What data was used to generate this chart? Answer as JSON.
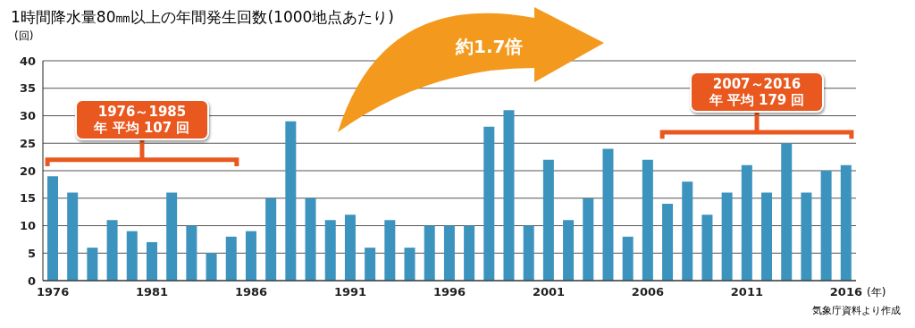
{
  "chart_data": {
    "type": "bar",
    "title": "1時間降水量80㎜以上の年間発生回数(1000地点あたり)",
    "ylabel": "(回)",
    "xlabel": "(年)",
    "categories": [
      "1976",
      null,
      null,
      null,
      null,
      "1981",
      null,
      null,
      null,
      null,
      "1986",
      null,
      null,
      null,
      null,
      "1991",
      null,
      null,
      null,
      null,
      "1996",
      null,
      null,
      null,
      null,
      "2001",
      null,
      null,
      null,
      null,
      "2006",
      null,
      null,
      null,
      null,
      "2011",
      null,
      null,
      null,
      null,
      "2016"
    ],
    "values": [
      19,
      16,
      6,
      11,
      9,
      7,
      16,
      10,
      5,
      8,
      9,
      15,
      29,
      15,
      11,
      12,
      6,
      11,
      6,
      10,
      10,
      10,
      28,
      31,
      10,
      22,
      11,
      15,
      24,
      8,
      22,
      14,
      18,
      12,
      16,
      21,
      16,
      25,
      16,
      20,
      21
    ],
    "color": "#3b93be",
    "ylim": [
      0,
      40
    ],
    "yticks": [
      0,
      5,
      10,
      15,
      20,
      25,
      30,
      35,
      40
    ],
    "grid": "y",
    "annotations": [
      "1976～1985 年 平均 107 回",
      "2007～2016 年 平均 179 回",
      "約1.7倍",
      "気象庁資料より作成"
    ]
  }
}
